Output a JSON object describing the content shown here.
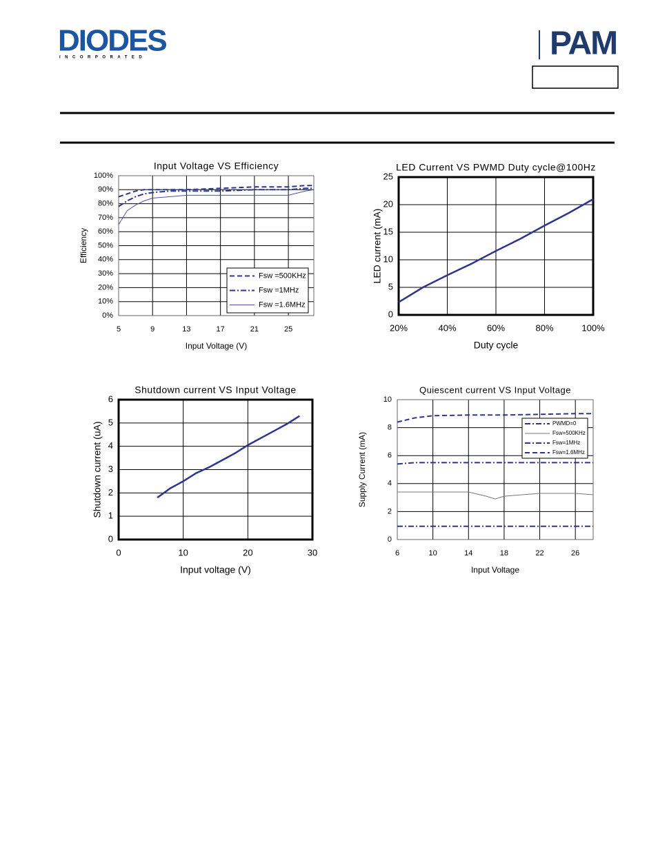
{
  "header": {
    "logo": "DIODES",
    "logo_sub": "INCORPORATED",
    "brand": "PAM"
  },
  "chart_data": [
    {
      "type": "line",
      "title": "Input Voltage VS Efficiency",
      "x_label": "Input Voltage (V)",
      "y_label": "Efficiency",
      "x": [
        5,
        6,
        7,
        8,
        9,
        11,
        13,
        17,
        21,
        25,
        27,
        28
      ],
      "xlim": [
        5,
        28
      ],
      "xticks": [
        5,
        9,
        13,
        17,
        21,
        25
      ],
      "ylim": [
        0,
        100
      ],
      "yticks": [
        {
          "value": 0,
          "label": "0%"
        },
        {
          "value": 10,
          "label": "10%"
        },
        {
          "value": 20,
          "label": "20%"
        },
        {
          "value": 30,
          "label": "30%"
        },
        {
          "value": 40,
          "label": "40%"
        },
        {
          "value": 50,
          "label": "50%"
        },
        {
          "value": 60,
          "label": "60%"
        },
        {
          "value": 70,
          "label": "70%"
        },
        {
          "value": 80,
          "label": "80%"
        },
        {
          "value": 90,
          "label": "90%"
        },
        {
          "value": 100,
          "label": "100%"
        }
      ],
      "grid": true,
      "legend": "lower right",
      "series": [
        {
          "name": "Fsw =500KHz",
          "color": "#2b3590",
          "line_style": "dashed",
          "values": [
            85,
            87,
            89,
            90,
            90,
            90,
            90,
            91,
            92,
            92,
            93,
            93
          ]
        },
        {
          "name": "Fsw =1MHz",
          "color": "#2b3590",
          "line_style": "dashdot",
          "values": [
            78,
            82,
            85,
            87,
            88,
            89,
            89,
            89,
            90,
            90,
            91,
            91
          ]
        },
        {
          "name": "Fsw =1.6MHz",
          "color": "#4a4fa8",
          "line_style": "solid",
          "values": [
            65,
            75,
            79,
            82,
            84,
            85,
            86,
            86,
            86,
            86,
            89,
            90
          ]
        }
      ]
    },
    {
      "type": "line",
      "title": "LED Current  VS PWMD Duty cycle@100Hz",
      "x_label": "Duty cycle",
      "y_label": "LED current (mA)",
      "x": [
        20,
        30,
        40,
        50,
        60,
        70,
        80,
        90,
        100
      ],
      "xlim": [
        20,
        100
      ],
      "xticks": [
        {
          "value": 20,
          "label": "20%"
        },
        {
          "value": 40,
          "label": "40%"
        },
        {
          "value": 60,
          "label": "60%"
        },
        {
          "value": 80,
          "label": "80%"
        },
        {
          "value": 100,
          "label": "100%"
        }
      ],
      "ylim": [
        0,
        25
      ],
      "yticks": [
        0,
        5,
        10,
        15,
        20,
        25
      ],
      "grid": true,
      "series": [
        {
          "color": "#2b3590",
          "line_style": "thick",
          "values": [
            2.3,
            5,
            7.2,
            9.3,
            11.6,
            13.8,
            16.2,
            18.5,
            21
          ]
        }
      ]
    },
    {
      "type": "line",
      "title": "Shutdown current VS Input Voltage",
      "x_label": "Input voltage (V)",
      "y_label": "Shutdown current (uA)",
      "x": [
        6,
        8,
        10,
        12,
        14,
        16,
        18,
        20,
        22,
        24,
        26,
        28
      ],
      "xlim": [
        0,
        30
      ],
      "xticks": [
        0,
        10,
        20,
        30
      ],
      "ylim": [
        0,
        6
      ],
      "yticks": [
        0,
        1,
        2,
        3,
        4,
        5,
        6
      ],
      "grid": true,
      "series": [
        {
          "color": "#2b3590",
          "line_style": "thick",
          "values": [
            1.8,
            2.2,
            2.5,
            2.85,
            3.1,
            3.4,
            3.7,
            4.05,
            4.35,
            4.65,
            4.95,
            5.3
          ]
        }
      ]
    },
    {
      "type": "line",
      "title": "Quiescent current VS Input Voltage",
      "x_label": "Input Voltage",
      "y_label": "Supply Current (mA)",
      "x": [
        6,
        8,
        10,
        14,
        16,
        17,
        18,
        22,
        26,
        28
      ],
      "xlim": [
        6,
        28
      ],
      "xticks": [
        6,
        10,
        14,
        18,
        22,
        26
      ],
      "ylim": [
        0,
        10
      ],
      "yticks": [
        0,
        2,
        4,
        6,
        8,
        10
      ],
      "grid": true,
      "legend": "upper right",
      "series": [
        {
          "name": "PWMD=0",
          "color": "#2b3590",
          "line_style": "dashdot",
          "values": [
            5.4,
            5.5,
            5.5,
            5.5,
            5.5,
            5.5,
            5.5,
            5.5,
            5.5,
            5.5
          ]
        },
        {
          "name": "Fsw=500KHz",
          "color": "#777777",
          "line_style": "solid",
          "values": [
            3.4,
            3.4,
            3.4,
            3.4,
            3.1,
            2.9,
            3.1,
            3.3,
            3.3,
            3.2
          ]
        },
        {
          "name": "Fsw=1MHz",
          "color": "#2b3590",
          "line_style": "dashdot",
          "values": [
            0.95,
            0.95,
            0.95,
            0.95,
            0.95,
            0.95,
            0.95,
            0.95,
            0.95,
            0.95
          ]
        },
        {
          "name": "Fsw=1.6MHz",
          "color": "#2b3590",
          "line_style": "dashed",
          "values": [
            8.4,
            8.7,
            8.85,
            8.9,
            8.9,
            8.9,
            8.9,
            8.95,
            9.0,
            9.0
          ]
        }
      ]
    }
  ]
}
